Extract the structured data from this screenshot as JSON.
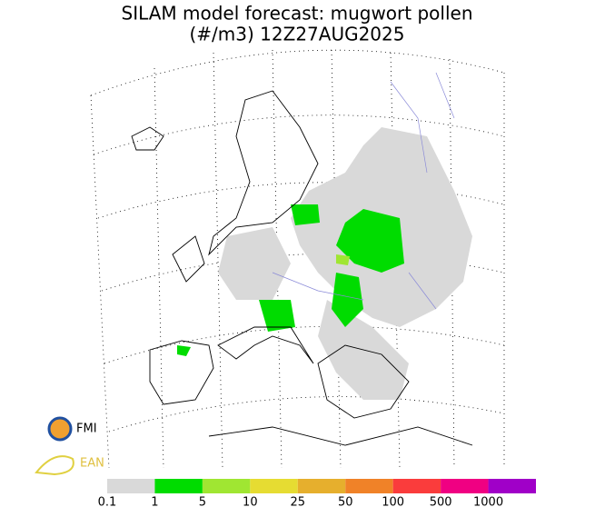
{
  "header": {
    "title": "SILAM model forecast: mugwort pollen",
    "subtitle": "(#/m3) 12Z27AUG2025"
  },
  "logos": [
    "FMI",
    "EAN"
  ],
  "legend": {
    "colors": [
      "#d9d9d9",
      "#00dc00",
      "#a0e632",
      "#e6dc32",
      "#e6af2d",
      "#f08228",
      "#fa3c3c",
      "#f00082",
      "#a000c8"
    ],
    "labels": [
      "0.1",
      "1",
      "5",
      "10",
      "25",
      "50",
      "100",
      "500",
      "1000"
    ]
  }
}
